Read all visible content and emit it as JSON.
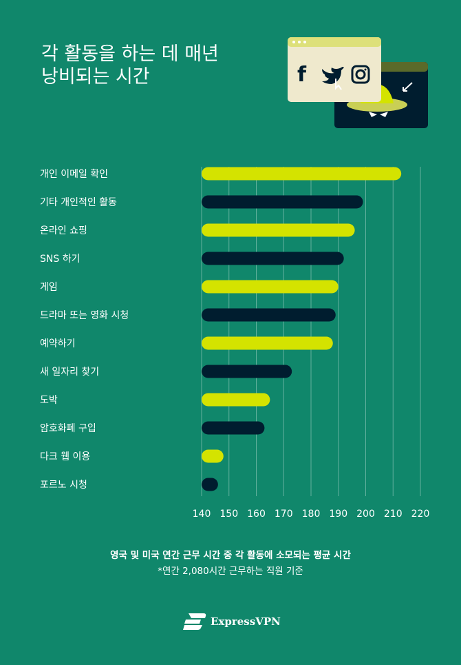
{
  "title": [
    "각 활동을 하는 데 매년",
    "낭비되는 시간"
  ],
  "illustration": {
    "icons": [
      "facebook-icon",
      "twitter-icon",
      "instagram-icon",
      "hacker-hat-icon",
      "cursor-icon"
    ]
  },
  "chart_data": {
    "type": "bar",
    "orientation": "horizontal",
    "categories": [
      "개인 이메일 확인",
      "기타 개인적인 활동",
      "온라인 쇼핑",
      "SNS 하기",
      "게임",
      "드라마 또는 영화 시청",
      "예약하기",
      "새 일자리 찾기",
      "도박",
      "암호화폐 구입",
      "다크 웹 이용",
      "포르노 시청"
    ],
    "values": [
      213,
      199,
      196,
      192,
      190,
      189,
      188,
      173,
      165,
      163,
      148,
      146
    ],
    "xlim": [
      140,
      220
    ],
    "xticks": [
      "140",
      "150",
      "160",
      "170",
      "180",
      "190",
      "200",
      "210",
      "220"
    ],
    "grid": true,
    "colors": [
      "#d4e300",
      "#001d2f"
    ],
    "xlabel": "",
    "ylabel": ""
  },
  "caption": "영국 및 미국 연간 근무 시간 중 각 활동에 소모되는 평균 시간",
  "note": "*연간 2,080시간 근무하는 직원 기준",
  "brand": "ExpressVPN",
  "colors": {
    "background": "#10876b",
    "lime": "#d4e300",
    "navy": "#001d2f"
  }
}
